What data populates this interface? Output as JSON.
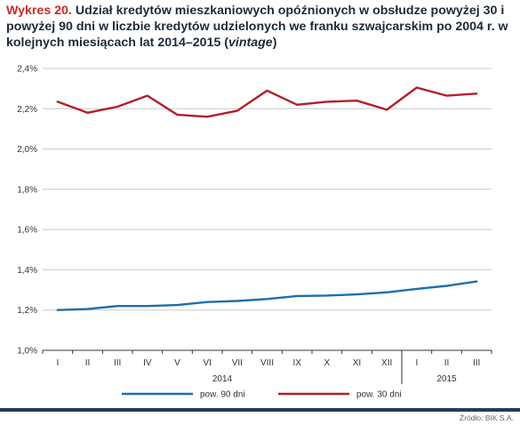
{
  "title": {
    "lead": "Wykres 20.",
    "text_before_italic": "Udział kredytów mieszkaniowych opóźnionych w obsłudze powyżej 30 i powyżej 90 dni w liczbie kredytów udzielonych we franku szwajcarskim po 2004 r. w kolejnych miesiącach lat 2014–2015 (",
    "italic": "vintage",
    "text_after_italic": ")"
  },
  "source": "Źródło: BIK S.A.",
  "colors": {
    "series_90": "#1c6fae",
    "series_30": "#b21f2a",
    "axis": "#333333",
    "grid": "#c8c8c8",
    "footer": "#243a5e"
  },
  "chart_data": {
    "type": "line",
    "categories": [
      "I",
      "II",
      "III",
      "IV",
      "V",
      "VI",
      "VII",
      "VIII",
      "IX",
      "X",
      "XI",
      "XII",
      "I",
      "II",
      "III"
    ],
    "year_labels": [
      {
        "label": "2014",
        "from_index": 0,
        "to_index": 11
      },
      {
        "label": "2015",
        "from_index": 12,
        "to_index": 14
      }
    ],
    "ylim": [
      1.0,
      2.4
    ],
    "yticks": [
      1.0,
      1.2,
      1.4,
      1.6,
      1.8,
      2.0,
      2.2,
      2.4
    ],
    "ytick_labels": [
      "1,0%",
      "1,2%",
      "1,4%",
      "1,6%",
      "1,8%",
      "2,0%",
      "2,2%",
      "2,4%"
    ],
    "grid": true,
    "legend_position": "bottom",
    "series": [
      {
        "name": "pow. 90 dni",
        "color_key": "series_90",
        "values": [
          1.2,
          1.205,
          1.22,
          1.22,
          1.225,
          1.24,
          1.245,
          1.255,
          1.27,
          1.272,
          1.278,
          1.288,
          1.305,
          1.32,
          1.342
        ]
      },
      {
        "name": "pow. 30 dni",
        "color_key": "series_30",
        "values": [
          2.235,
          2.18,
          2.21,
          2.265,
          2.17,
          2.16,
          2.19,
          2.29,
          2.22,
          2.235,
          2.24,
          2.195,
          2.305,
          2.265,
          2.275
        ]
      }
    ]
  }
}
